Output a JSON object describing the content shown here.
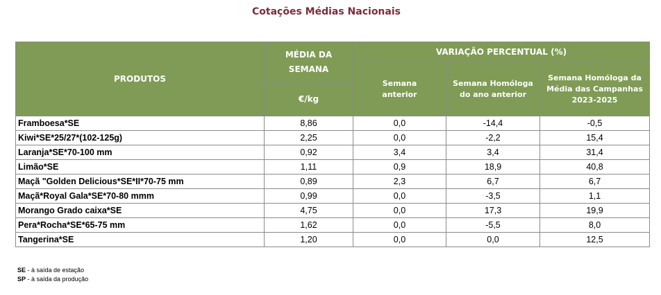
{
  "title": "Cotações Médias Nacionais",
  "table": {
    "headers": {
      "produtos": "PRODUTOS",
      "media_semana": "MÉDIA DA SEMANA",
      "unit": "€/kg",
      "variacao": "VARIAÇÃO PERCENTUAL (%)",
      "semana_anterior": "Semana anterior",
      "semana_homologa": "Semana Homóloga do ano anterior",
      "semana_homologa_media": "Semana Homóloga da Média das Campanhas 2023-2025"
    },
    "rows": [
      {
        "produto": "Framboesa*SE",
        "media": "8,86",
        "anterior": "0,0",
        "homologa": "-14,4",
        "homologa_media": "-0,5"
      },
      {
        "produto": "Kiwi*SE*25/27*(102-125g)",
        "media": "2,25",
        "anterior": "0,0",
        "homologa": "-2,2",
        "homologa_media": "15,4"
      },
      {
        "produto": "Laranja*SE*70-100 mm",
        "media": "0,92",
        "anterior": "3,4",
        "homologa": "3,4",
        "homologa_media": "31,4"
      },
      {
        "produto": "Limão*SE",
        "media": "1,11",
        "anterior": "0,9",
        "homologa": "18,9",
        "homologa_media": "40,8"
      },
      {
        "produto": "Maçã \"Golden Delicious*SE*II*70-75 mm",
        "media": "0,89",
        "anterior": "2,3",
        "homologa": "6,7",
        "homologa_media": "6,7"
      },
      {
        "produto": "Maçã*Royal Gala*SE*70-80 mmm",
        "media": "0,99",
        "anterior": "0,0",
        "homologa": "-3,5",
        "homologa_media": "1,1"
      },
      {
        "produto": "Morango Grado caixa*SE",
        "media": "4,75",
        "anterior": "0,0",
        "homologa": "17,3",
        "homologa_media": "19,9"
      },
      {
        "produto": "Pera*Rocha*SE*65-75 mm",
        "media": "1,62",
        "anterior": "0,0",
        "homologa": "-5,5",
        "homologa_media": "8,0"
      },
      {
        "produto": "Tangerina*SE",
        "media": "1,20",
        "anterior": "0,0",
        "homologa": "0,0",
        "homologa_media": "12,5"
      }
    ]
  },
  "notes": [
    {
      "abbr": "SE",
      "text": " - à saída de estação"
    },
    {
      "abbr": "SP",
      "text": " - à saída da produção"
    }
  ],
  "colors": {
    "header_bg": "#7f9b55",
    "title": "#7b2c3c"
  }
}
